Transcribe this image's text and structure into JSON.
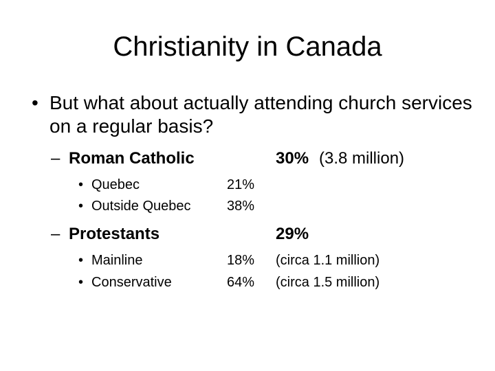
{
  "slide": {
    "title": "Christianity in Canada",
    "bullet": {
      "marker": "•",
      "text": "But what about actually attending church services on a regular basis?"
    },
    "groups": [
      {
        "dash": "–",
        "label": "Roman Catholic",
        "percent": "30%",
        "note": "(3.8 million)",
        "items": [
          {
            "marker": "•",
            "label": "Quebec",
            "percent": "21%",
            "note": ""
          },
          {
            "marker": "•",
            "label": "Outside Quebec",
            "percent": "38%",
            "note": ""
          }
        ]
      },
      {
        "dash": "–",
        "label": "Protestants",
        "percent": "29%",
        "note": "",
        "items": [
          {
            "marker": "•",
            "label": "Mainline",
            "percent": "18%",
            "note": "(circa 1.1 million)"
          },
          {
            "marker": "•",
            "label": "Conservative",
            "percent": "64%",
            "note": "(circa 1.5 million)"
          }
        ]
      }
    ]
  }
}
